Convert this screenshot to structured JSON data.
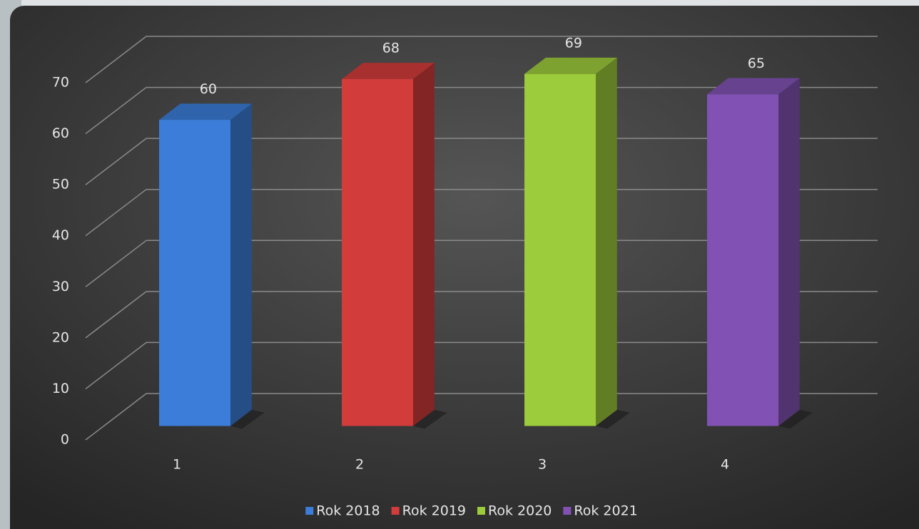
{
  "chart_data": {
    "type": "bar3d",
    "categories": [
      "1",
      "2",
      "3",
      "4"
    ],
    "series": [
      {
        "name": "Rok 2018",
        "color": "#3b7dd8",
        "values": [
          60,
          null,
          null,
          null
        ]
      },
      {
        "name": "Rok 2019",
        "color": "#d23c3a",
        "values": [
          null,
          68,
          null,
          null
        ]
      },
      {
        "name": "Rok 2020",
        "color": "#9ccb3b",
        "values": [
          null,
          null,
          69,
          null
        ]
      },
      {
        "name": "Rok 2021",
        "color": "#8152b3",
        "values": [
          null,
          null,
          null,
          65
        ]
      }
    ],
    "ylim": [
      0,
      70
    ],
    "yticks": [
      0,
      10,
      20,
      30,
      40,
      50,
      60,
      70
    ],
    "grid": true,
    "legend": "bottom"
  }
}
